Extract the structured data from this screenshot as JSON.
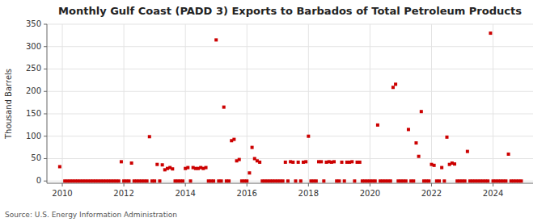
{
  "chart_data": {
    "type": "scatter",
    "title": "Monthly Gulf Coast (PADD 3) Exports to Barbados of Total Petroleum Products",
    "ylabel": "Thousand Barrels",
    "source": "Source: U.S. Energy Information Administration",
    "color": "#cc0000",
    "marker": "square",
    "grid": true,
    "xlim": [
      2009.5,
      2025.3
    ],
    "xticks": [
      2010,
      2012,
      2014,
      2016,
      2018,
      2020,
      2022,
      2024
    ],
    "ylim": [
      -5,
      350
    ],
    "yticks": [
      0,
      50,
      100,
      150,
      200,
      250,
      300,
      350
    ],
    "x": [
      2009.917,
      2010.083,
      2010.167,
      2010.25,
      2010.333,
      2010.417,
      2010.5,
      2010.583,
      2010.667,
      2010.75,
      2010.833,
      2010.917,
      2011.0,
      2011.083,
      2011.167,
      2011.25,
      2011.333,
      2011.417,
      2011.5,
      2011.583,
      2011.667,
      2011.75,
      2011.833,
      2011.917,
      2012.0,
      2012.083,
      2012.167,
      2012.25,
      2012.333,
      2012.417,
      2012.5,
      2012.583,
      2012.667,
      2012.75,
      2012.833,
      2012.917,
      2013.0,
      2013.083,
      2013.167,
      2013.25,
      2013.333,
      2013.417,
      2013.5,
      2013.583,
      2013.667,
      2013.75,
      2013.833,
      2013.917,
      2014.0,
      2014.083,
      2014.167,
      2014.25,
      2014.333,
      2014.417,
      2014.5,
      2014.583,
      2014.667,
      2014.75,
      2014.833,
      2014.917,
      2015.0,
      2015.083,
      2015.167,
      2015.25,
      2015.333,
      2015.417,
      2015.5,
      2015.583,
      2015.667,
      2015.75,
      2015.833,
      2015.917,
      2016.0,
      2016.083,
      2016.167,
      2016.25,
      2016.333,
      2016.417,
      2016.5,
      2016.583,
      2016.667,
      2016.75,
      2016.833,
      2016.917,
      2017.0,
      2017.083,
      2017.167,
      2017.25,
      2017.333,
      2017.417,
      2017.5,
      2017.583,
      2017.667,
      2017.75,
      2017.833,
      2017.917,
      2018.0,
      2018.083,
      2018.167,
      2018.25,
      2018.333,
      2018.417,
      2018.5,
      2018.583,
      2018.667,
      2018.75,
      2018.833,
      2018.917,
      2019.0,
      2019.083,
      2019.167,
      2019.25,
      2019.333,
      2019.417,
      2019.5,
      2019.583,
      2019.667,
      2019.75,
      2019.833,
      2019.917,
      2020.0,
      2020.083,
      2020.167,
      2020.25,
      2020.333,
      2020.417,
      2020.5,
      2020.583,
      2020.667,
      2020.75,
      2020.833,
      2020.917,
      2021.0,
      2021.083,
      2021.167,
      2021.25,
      2021.333,
      2021.417,
      2021.5,
      2021.583,
      2021.667,
      2021.75,
      2021.833,
      2021.917,
      2022.0,
      2022.083,
      2022.167,
      2022.25,
      2022.333,
      2022.417,
      2022.5,
      2022.583,
      2022.667,
      2022.75,
      2022.833,
      2022.917,
      2023.0,
      2023.083,
      2023.167,
      2023.25,
      2023.333,
      2023.417,
      2023.5,
      2023.583,
      2023.667,
      2023.75,
      2023.833,
      2023.917,
      2024.0,
      2024.083,
      2024.167,
      2024.25,
      2024.333,
      2024.417,
      2024.5,
      2024.583,
      2024.667,
      2024.75,
      2024.833,
      2024.917
    ],
    "values": [
      32,
      0,
      0,
      0,
      0,
      0,
      0,
      0,
      0,
      0,
      0,
      0,
      0,
      0,
      0,
      0,
      0,
      0,
      0,
      0,
      0,
      0,
      0,
      43,
      0,
      0,
      0,
      40,
      0,
      0,
      0,
      0,
      0,
      0,
      99,
      0,
      0,
      37,
      0,
      36,
      25,
      28,
      30,
      27,
      0,
      0,
      0,
      0,
      28,
      30,
      0,
      30,
      28,
      28,
      30,
      28,
      30,
      0,
      0,
      0,
      315,
      0,
      0,
      165,
      0,
      0,
      90,
      93,
      45,
      48,
      0,
      0,
      0,
      18,
      75,
      50,
      45,
      42,
      0,
      0,
      0,
      0,
      0,
      0,
      0,
      0,
      0,
      42,
      0,
      43,
      42,
      0,
      42,
      0,
      42,
      43,
      100,
      0,
      0,
      0,
      43,
      43,
      0,
      42,
      43,
      42,
      43,
      0,
      0,
      42,
      0,
      42,
      42,
      43,
      0,
      42,
      42,
      0,
      0,
      0,
      0,
      0,
      0,
      125,
      0,
      0,
      0,
      0,
      0,
      209,
      216,
      0,
      0,
      0,
      0,
      115,
      0,
      0,
      85,
      55,
      155,
      0,
      0,
      0,
      37,
      35,
      0,
      0,
      30,
      0,
      98,
      37,
      40,
      38,
      0,
      0,
      0,
      0,
      66,
      0,
      0,
      0,
      0,
      0,
      0,
      0,
      0,
      330,
      0,
      0,
      0,
      0,
      0,
      0,
      60,
      0,
      0,
      0,
      0,
      0
    ]
  }
}
